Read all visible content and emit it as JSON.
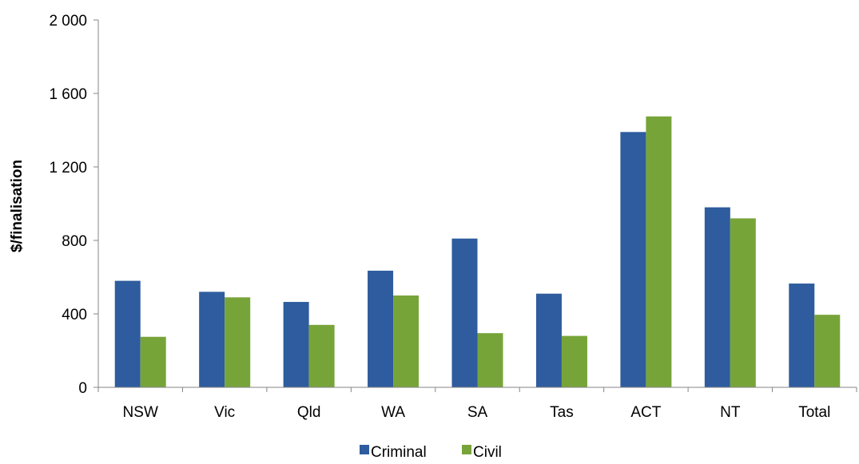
{
  "chart_data": {
    "type": "bar",
    "title": "",
    "xlabel": "",
    "ylabel": "$/finalisation",
    "ylim": [
      0,
      2000
    ],
    "yticks": [
      0,
      400,
      800,
      1200,
      1600,
      2000
    ],
    "ytick_labels": [
      "0",
      "400",
      "800",
      "1 200",
      "1 600",
      "2 000"
    ],
    "grid": false,
    "legend_position": "bottom",
    "categories": [
      "NSW",
      "Vic",
      "Qld",
      "WA",
      "SA",
      "Tas",
      "ACT",
      "NT",
      "Total"
    ],
    "series": [
      {
        "name": "Criminal",
        "color": "#2E5C9E",
        "values": [
          580,
          520,
          465,
          635,
          810,
          510,
          1390,
          980,
          565
        ]
      },
      {
        "name": "Civil",
        "color": "#77A439",
        "values": [
          275,
          490,
          340,
          500,
          295,
          280,
          1475,
          920,
          395
        ]
      }
    ]
  }
}
